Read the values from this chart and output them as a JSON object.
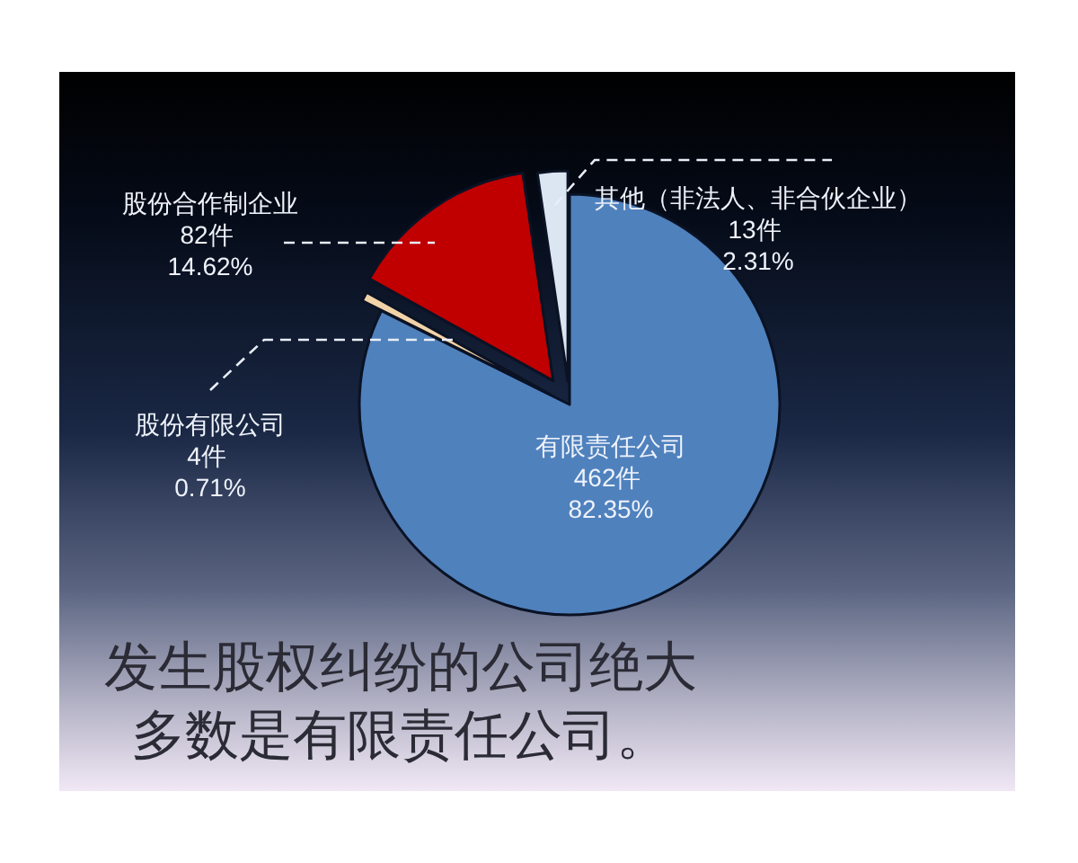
{
  "chart_data": {
    "type": "pie",
    "title": "发生股权纠纷的公司绝大多数是有限责任公司。",
    "categories": [
      "有限责任公司",
      "股份有限公司",
      "股份合作制企业",
      "其他（非法人、非合伙企业）"
    ],
    "values": [
      462,
      4,
      82,
      13
    ],
    "value_labels": [
      "462件 82.35%",
      "4件 0.71%",
      "82件 14.62%",
      "13件 2.31%"
    ],
    "colors": [
      "#4f81bd",
      "#f2d3a8",
      "#c00000",
      "#dce6f2"
    ]
  }
}
